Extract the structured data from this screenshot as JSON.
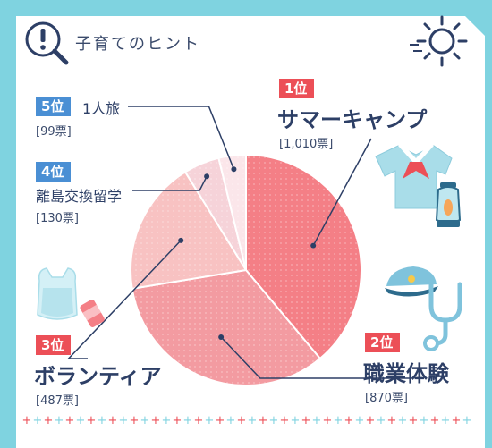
{
  "header": {
    "title": "子育てのヒント",
    "hint_icon": "magnifier-exclamation-icon",
    "sun_icon": "sun-icon"
  },
  "colors": {
    "frame": "#7fd3e0",
    "rank_top": "#ec4f57",
    "rank_other": "#4a8fd4",
    "text": "#2d3f66"
  },
  "chart_data": {
    "type": "pie",
    "unit": "票",
    "slices": [
      {
        "rank": "1位",
        "label": "サマーキャンプ",
        "votes_text": "[1,010票]",
        "value": 1010,
        "color": "#f47f86"
      },
      {
        "rank": "2位",
        "label": "職業体験",
        "votes_text": "[870票]",
        "value": 870,
        "color": "#f39ba1"
      },
      {
        "rank": "3位",
        "label": "ボランティア",
        "votes_text": "[487票]",
        "value": 487,
        "color": "#f8c2c2"
      },
      {
        "rank": "4位",
        "label": "離島交換留学",
        "votes_text": "[130票]",
        "value": 130,
        "color": "#f6d3d9"
      },
      {
        "rank": "5位",
        "label": "1人旅",
        "votes_text": "[99票]",
        "value": 99,
        "color": "#fbe6ea"
      }
    ]
  },
  "illustrations": [
    "sailor-shirt-icon",
    "lantern-icon",
    "cap-icon",
    "stethoscope-icon",
    "plastic-bag-icon",
    "can-icon"
  ]
}
